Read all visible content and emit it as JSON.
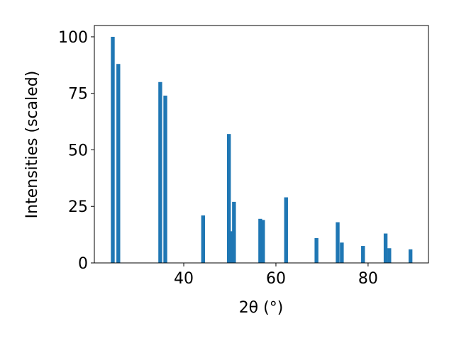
{
  "chart_data": {
    "type": "bar",
    "xlabel": "2θ (°)",
    "ylabel": "Intensities (scaled)",
    "x": [
      24.6,
      25.8,
      34.9,
      36.0,
      44.2,
      49.8,
      50.3,
      50.9,
      56.6,
      57.2,
      62.2,
      68.8,
      73.4,
      74.3,
      78.9,
      83.8,
      84.6,
      89.2
    ],
    "values": [
      100,
      88,
      80,
      74,
      21,
      57,
      14,
      27,
      19.5,
      19,
      29,
      11,
      18,
      9,
      7.5,
      13,
      6.5,
      6
    ],
    "color": "#1f77b4",
    "xlim": [
      20.6,
      93.1
    ],
    "xticks": [
      40,
      60,
      80
    ],
    "ylim": [
      0,
      105
    ],
    "yticks": [
      0,
      25,
      50,
      75,
      100
    ]
  }
}
